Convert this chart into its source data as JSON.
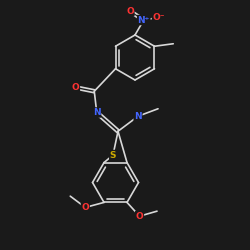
{
  "background": "#1a1a1a",
  "bond_color": "#d8d8d8",
  "N_color": "#4466ff",
  "O_color": "#ff3333",
  "S_color": "#ccaa00",
  "font_size": 6.5,
  "bond_width": 1.2,
  "figsize": [
    2.5,
    2.5
  ],
  "dpi": 100,
  "xlim": [
    0,
    10
  ],
  "ylim": [
    0,
    10
  ]
}
